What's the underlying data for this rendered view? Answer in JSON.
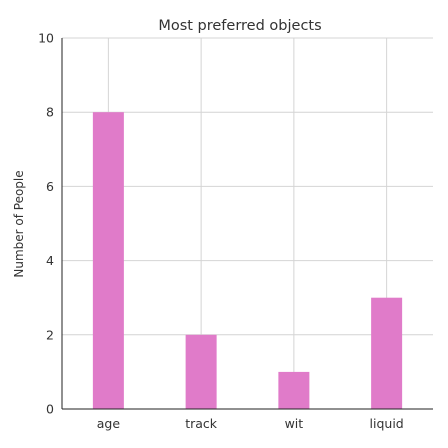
{
  "chart_data": {
    "type": "bar",
    "title": "Most preferred objects",
    "xlabel": "",
    "ylabel": "Number of People",
    "categories": [
      "age",
      "track",
      "wit",
      "liquid"
    ],
    "values": [
      8,
      2,
      1,
      3
    ],
    "ylim": [
      0,
      10
    ],
    "yticks": [
      0,
      2,
      4,
      6,
      8,
      10
    ],
    "bar_color": "#e07bc9",
    "grid": true,
    "legend": "none"
  }
}
